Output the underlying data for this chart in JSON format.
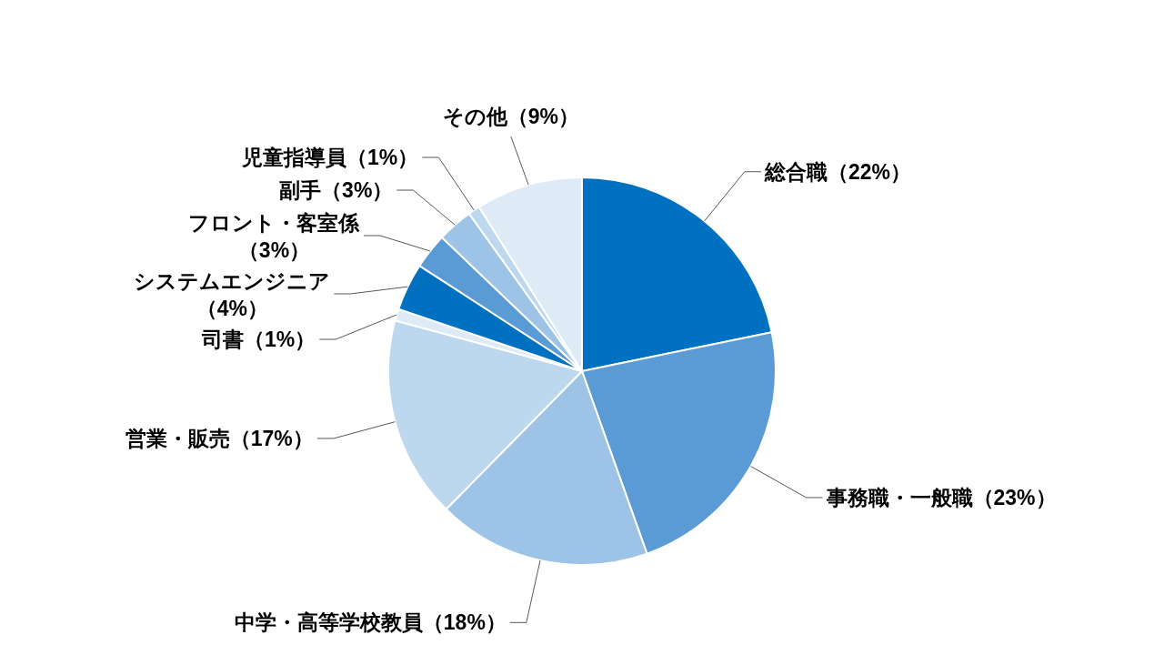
{
  "chart_data": {
    "type": "pie",
    "categories": [
      "総合職",
      "事務職・一般職",
      "中学・高等学校教員",
      "営業・販売",
      "司書",
      "システムエンジニア",
      "フロント・客室係",
      "副手",
      "児童指導員",
      "その他"
    ],
    "values": [
      22,
      23,
      18,
      17,
      1,
      4,
      3,
      3,
      1,
      9
    ],
    "value_labels": [
      "（22%）",
      "（23%）",
      "（18%）",
      "（17%）",
      "（1%）",
      "（4%）",
      "（3%）",
      "（3%）",
      "（1%）",
      "（9%）"
    ],
    "colors": [
      "#0070c0",
      "#5b9bd5",
      "#9dc3e6",
      "#bdd7ee",
      "#deebf7",
      "#0070c0",
      "#5b9bd5",
      "#9dc3e6",
      "#bdd7ee",
      "#deebf7"
    ]
  }
}
